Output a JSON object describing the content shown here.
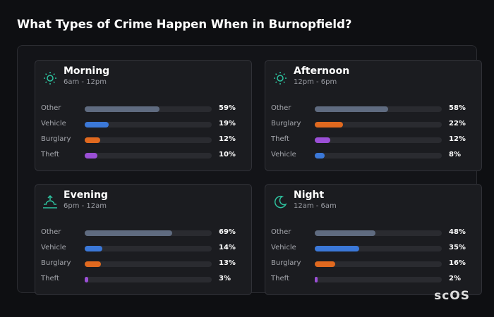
{
  "header": {
    "title": "What Types of Crime Happen When in Burnopfield?"
  },
  "xlim": [
    0,
    100
  ],
  "panels": [
    {
      "name": "Morning",
      "time": "6am - 12pm",
      "rows": [
        {
          "label": "Other",
          "value": 59,
          "value_label": "59%",
          "color": "#5f6b80"
        },
        {
          "label": "Vehicle",
          "value": 19,
          "value_label": "19%",
          "color": "#3b78d8"
        },
        {
          "label": "Burglary",
          "value": 12,
          "value_label": "12%",
          "color": "#e0691f"
        },
        {
          "label": "Theft",
          "value": 10,
          "value_label": "10%",
          "color": "#9b4fd6"
        }
      ]
    },
    {
      "name": "Afternoon",
      "time": "12pm - 6pm",
      "rows": [
        {
          "label": "Other",
          "value": 58,
          "value_label": "58%",
          "color": "#5f6b80"
        },
        {
          "label": "Burglary",
          "value": 22,
          "value_label": "22%",
          "color": "#e0691f"
        },
        {
          "label": "Theft",
          "value": 12,
          "value_label": "12%",
          "color": "#9b4fd6"
        },
        {
          "label": "Vehicle",
          "value": 8,
          "value_label": "8%",
          "color": "#3b78d8"
        }
      ]
    },
    {
      "name": "Evening",
      "time": "6pm - 12am",
      "rows": [
        {
          "label": "Other",
          "value": 69,
          "value_label": "69%",
          "color": "#5f6b80"
        },
        {
          "label": "Vehicle",
          "value": 14,
          "value_label": "14%",
          "color": "#3b78d8"
        },
        {
          "label": "Burglary",
          "value": 13,
          "value_label": "13%",
          "color": "#e0691f"
        },
        {
          "label": "Theft",
          "value": 3,
          "value_label": "3%",
          "color": "#9b4fd6"
        }
      ]
    },
    {
      "name": "Night",
      "time": "12am - 6am",
      "rows": [
        {
          "label": "Other",
          "value": 48,
          "value_label": "48%",
          "color": "#5f6b80"
        },
        {
          "label": "Vehicle",
          "value": 35,
          "value_label": "35%",
          "color": "#3b78d8"
        },
        {
          "label": "Burglary",
          "value": 16,
          "value_label": "16%",
          "color": "#e0691f"
        },
        {
          "label": "Theft",
          "value": 2,
          "value_label": "2%",
          "color": "#9b4fd6"
        }
      ]
    }
  ],
  "logo": {
    "text": "scOS"
  }
}
